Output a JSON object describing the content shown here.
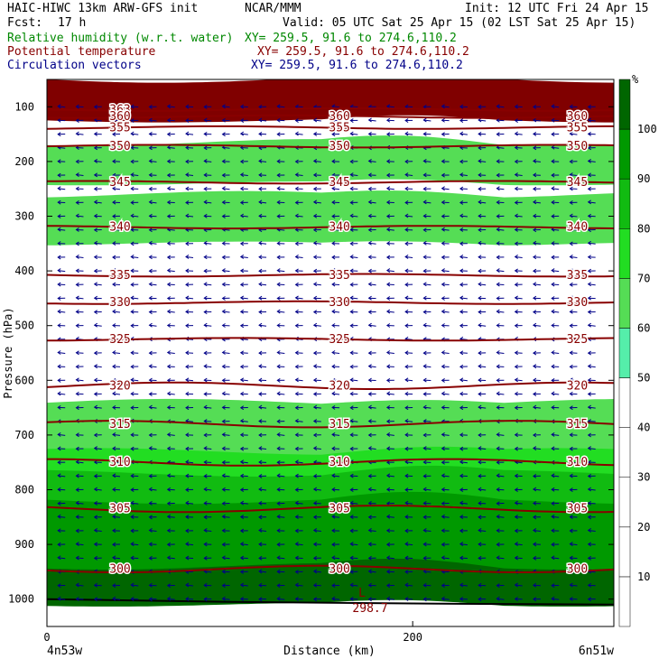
{
  "header": {
    "model": "HAIC-HIWC 13km ARW-GFS init",
    "org": "NCAR/MMM",
    "init": "Init: 12 UTC Fri 24 Apr 15",
    "fcst_label": "Fcst:",
    "fcst_value": "17 h",
    "valid": "Valid: 05 UTC Sat 25 Apr 15 (02 LST Sat 25 Apr 15)",
    "fields": [
      {
        "name": "Relative humidity (w.r.t. water)",
        "xy": "XY= 259.5, 91.6 to 274.6,110.2",
        "color": "#008800"
      },
      {
        "name": "Potential temperature",
        "xy": "XY= 259.5, 91.6 to 274.6,110.2",
        "color": "#880000"
      },
      {
        "name": "Circulation vectors",
        "xy": "XY= 259.5, 91.6 to 274.6,110.2",
        "color": "#000088"
      }
    ]
  },
  "chart_data": {
    "type": "heatmap",
    "xlabel": "Distance (km)",
    "ylabel": "Pressure (hPa)",
    "x_ticks": [
      0,
      200
    ],
    "x_range": [
      0,
      310
    ],
    "y_ticks": [
      100,
      200,
      300,
      400,
      500,
      600,
      700,
      800,
      900,
      1000
    ],
    "y_range": [
      50,
      1050
    ],
    "left_end_label": "4n53w",
    "right_end_label": "6n51w",
    "colorbar": {
      "unit": "%",
      "levels": [
        10,
        20,
        30,
        40,
        50,
        60,
        70,
        80,
        90,
        100
      ],
      "colors": [
        "#ffffff",
        "#ffffff",
        "#ffffff",
        "#ffffff",
        "#ffffff",
        "#55eeaa",
        "#55dd55",
        "#22dd22",
        "#11bb11",
        "#009900",
        "#006600",
        "#ff7777"
      ]
    },
    "rh_bands_pressure": [
      {
        "pct": 100,
        "top": 50,
        "bottom": 125,
        "color": "#800000"
      },
      {
        "pct": 60,
        "top": 165,
        "bottom": 240
      },
      {
        "pct": 60,
        "top": 260,
        "bottom": 350
      },
      {
        "pct": 60,
        "top": 640,
        "bottom": 760
      },
      {
        "pct": 70,
        "top": 730,
        "bottom": 800
      },
      {
        "pct": 80,
        "top": 770,
        "bottom": 840
      },
      {
        "pct": 90,
        "top": 820,
        "bottom": 960
      },
      {
        "pct": 100,
        "top": 940,
        "bottom": 1010
      }
    ],
    "isentropes": [
      {
        "theta": 363,
        "p": 105
      },
      {
        "theta": 360,
        "p": 118
      },
      {
        "theta": 355,
        "p": 138
      },
      {
        "theta": 350,
        "p": 172
      },
      {
        "theta": 345,
        "p": 238
      },
      {
        "theta": 340,
        "p": 320
      },
      {
        "theta": 335,
        "p": 408
      },
      {
        "theta": 330,
        "p": 458
      },
      {
        "theta": 325,
        "p": 525
      },
      {
        "theta": 320,
        "p": 610
      },
      {
        "theta": 315,
        "p": 680
      },
      {
        "theta": 310,
        "p": 750
      },
      {
        "theta": 305,
        "p": 835
      },
      {
        "theta": 300,
        "p": 945
      }
    ],
    "minimum_label": "L",
    "minimum_value": "298.7",
    "vectors": "Circulation vectors"
  }
}
